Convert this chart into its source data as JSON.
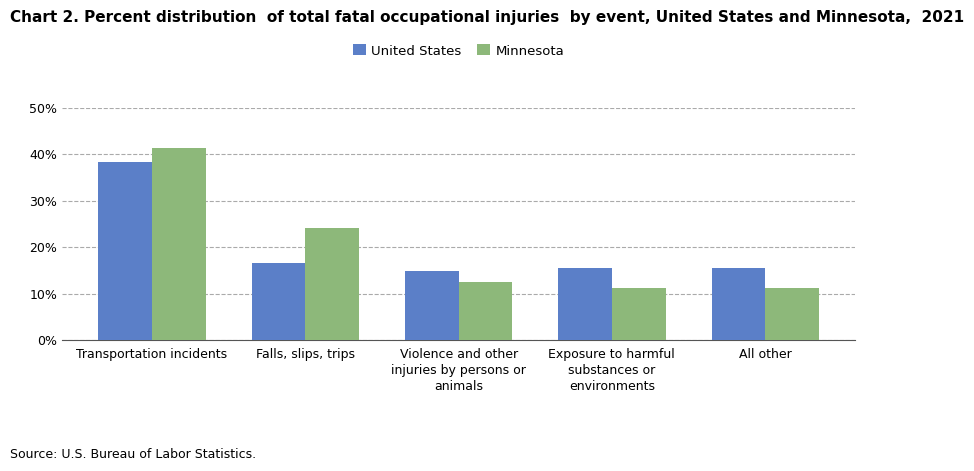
{
  "title": "Chart 2. Percent distribution  of total fatal occupational injuries  by event, United States and Minnesota,  2021",
  "categories": [
    "Transportation incidents",
    "Falls, slips, trips",
    "Violence and other\ninjuries by persons or\nanimals",
    "Exposure to harmful\nsubstances or\nenvironments",
    "All other"
  ],
  "us_values": [
    38.3,
    16.6,
    14.8,
    15.4,
    15.5
  ],
  "mn_values": [
    41.4,
    24.1,
    12.5,
    11.3,
    11.3
  ],
  "us_color": "#5B7FC8",
  "mn_color": "#8DB87A",
  "us_label": "United States",
  "mn_label": "Minnesota",
  "ylim": [
    0,
    50
  ],
  "yticks": [
    0,
    10,
    20,
    30,
    40,
    50
  ],
  "source": "Source: U.S. Bureau of Labor Statistics.",
  "bar_width": 0.35,
  "grid_color": "#aaaaaa",
  "grid_linestyle": "--",
  "background_color": "#ffffff",
  "title_fontsize": 11,
  "axis_fontsize": 9,
  "legend_fontsize": 9.5,
  "source_fontsize": 9
}
